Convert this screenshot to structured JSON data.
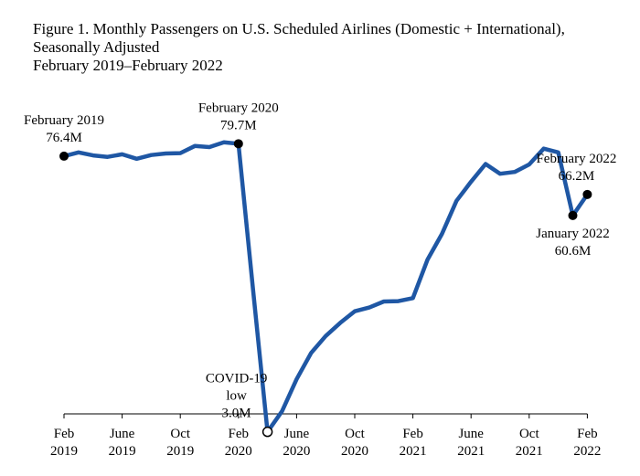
{
  "chart_data": {
    "type": "line",
    "title": [
      "Figure 1. Monthly Passengers on U.S. Scheduled Airlines (Domestic + International),",
      "Seasonally Adjusted",
      "February 2019–February 2022"
    ],
    "xlabel": "",
    "ylabel": "",
    "unit": "millions of passengers",
    "grid": false,
    "line_color": "#1f57a4",
    "x": [
      "2019-02",
      "2019-03",
      "2019-04",
      "2019-05",
      "2019-06",
      "2019-07",
      "2019-08",
      "2019-09",
      "2019-10",
      "2019-11",
      "2019-12",
      "2020-01",
      "2020-02",
      "2020-03",
      "2020-04",
      "2020-05",
      "2020-06",
      "2020-07",
      "2020-08",
      "2020-09",
      "2020-10",
      "2020-11",
      "2020-12",
      "2021-01",
      "2021-02",
      "2021-03",
      "2021-04",
      "2021-05",
      "2021-06",
      "2021-07",
      "2021-08",
      "2021-09",
      "2021-10",
      "2021-11",
      "2021-12",
      "2022-01",
      "2022-02"
    ],
    "values": [
      76.4,
      77.4,
      76.6,
      76.2,
      76.9,
      75.7,
      76.7,
      77.1,
      77.2,
      79.1,
      78.8,
      80.1,
      79.7,
      41.0,
      3.0,
      8.5,
      17.0,
      24.0,
      28.5,
      32.0,
      35.1,
      36.1,
      37.7,
      37.8,
      38.6,
      48.8,
      55.7,
      64.5,
      69.6,
      74.3,
      71.7,
      72.2,
      74.2,
      78.4,
      77.4,
      60.6,
      66.2
    ],
    "ylim": [
      0,
      90
    ],
    "x_ticks": [
      {
        "month": "2019-02",
        "line1": "Feb",
        "line2": "2019"
      },
      {
        "month": "2019-06",
        "line1": "June",
        "line2": "2019"
      },
      {
        "month": "2019-10",
        "line1": "Oct",
        "line2": "2019"
      },
      {
        "month": "2020-02",
        "line1": "Feb",
        "line2": "2020"
      },
      {
        "month": "2020-06",
        "line1": "June",
        "line2": "2020"
      },
      {
        "month": "2020-10",
        "line1": "Oct",
        "line2": "2020"
      },
      {
        "month": "2021-02",
        "line1": "Feb",
        "line2": "2021"
      },
      {
        "month": "2021-06",
        "line1": "June",
        "line2": "2021"
      },
      {
        "month": "2021-10",
        "line1": "Oct",
        "line2": "2021"
      },
      {
        "month": "2022-02",
        "line1": "Feb",
        "line2": "2022"
      }
    ],
    "annotations": [
      {
        "month": "2019-02",
        "lines": [
          "February 2019",
          "76.4M"
        ],
        "marker": "filled",
        "position": "above"
      },
      {
        "month": "2020-02",
        "lines": [
          "February 2020",
          "79.7M"
        ],
        "marker": "filled",
        "position": "above"
      },
      {
        "month": "2020-04",
        "lines": [
          "COVID-19",
          "low",
          "3.0M"
        ],
        "marker": "open",
        "position": "left"
      },
      {
        "month": "2022-01",
        "lines": [
          "January 2022",
          "60.6M"
        ],
        "marker": "filled",
        "position": "below"
      },
      {
        "month": "2022-02",
        "lines": [
          "February 2022",
          "66.2M"
        ],
        "marker": "filled",
        "position": "above-left"
      }
    ]
  }
}
